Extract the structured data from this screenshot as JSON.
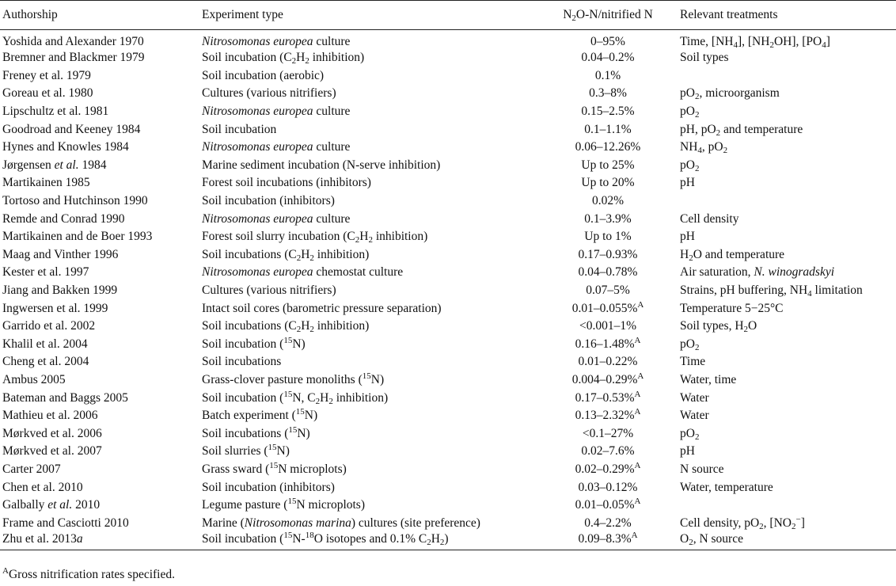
{
  "table": {
    "headers": [
      "Authorship",
      "Experiment type",
      "N2O-N/nitrified N",
      "Relevant treatments"
    ],
    "header_parts": [
      {
        "text": "Authorship"
      },
      {
        "text": "Experiment type"
      },
      {
        "text": "N2O-N/nitrified N",
        "parts": [
          {
            "t": "N"
          },
          {
            "t": "2",
            "sub": true
          },
          {
            "t": "O-N/nitrified N"
          }
        ]
      },
      {
        "text": "Relevant treatments"
      }
    ],
    "rows": [
      {
        "author": [
          {
            "t": "Yoshida and Alexander 1970"
          }
        ],
        "experiment": [
          {
            "t": "Nitrosomonas europea",
            "i": true
          },
          {
            "t": " culture"
          }
        ],
        "ratio": [
          {
            "t": "0–95%"
          }
        ],
        "treatments": [
          {
            "t": "Time, [NH"
          },
          {
            "t": "4",
            "sub": true
          },
          {
            "t": "], [NH"
          },
          {
            "t": "2",
            "sub": true
          },
          {
            "t": "OH], [PO"
          },
          {
            "t": "4",
            "sub": true
          },
          {
            "t": "]"
          }
        ]
      },
      {
        "author": [
          {
            "t": "Bremner and Blackmer 1979"
          }
        ],
        "experiment": [
          {
            "t": "Soil incubation (C"
          },
          {
            "t": "2",
            "sub": true
          },
          {
            "t": "H"
          },
          {
            "t": "2",
            "sub": true
          },
          {
            "t": " inhibition)"
          }
        ],
        "ratio": [
          {
            "t": "0.04–0.2%"
          }
        ],
        "treatments": [
          {
            "t": "Soil types"
          }
        ]
      },
      {
        "author": [
          {
            "t": "Freney et al. 1979"
          }
        ],
        "experiment": [
          {
            "t": "Soil incubation (aerobic)"
          }
        ],
        "ratio": [
          {
            "t": "0.1%"
          }
        ],
        "treatments": []
      },
      {
        "author": [
          {
            "t": "Goreau et al. 1980"
          }
        ],
        "experiment": [
          {
            "t": "Cultures (various nitrifiers)"
          }
        ],
        "ratio": [
          {
            "t": "0.3–8%"
          }
        ],
        "treatments": [
          {
            "t": "pO"
          },
          {
            "t": "2",
            "sub": true
          },
          {
            "t": ", microorganism"
          }
        ]
      },
      {
        "author": [
          {
            "t": "Lipschultz et al. 1981"
          }
        ],
        "experiment": [
          {
            "t": "Nitrosomonas europea",
            "i": true
          },
          {
            "t": " culture"
          }
        ],
        "ratio": [
          {
            "t": "0.15–2.5%"
          }
        ],
        "treatments": [
          {
            "t": "pO"
          },
          {
            "t": "2",
            "sub": true
          }
        ]
      },
      {
        "author": [
          {
            "t": "Goodroad and Keeney 1984"
          }
        ],
        "experiment": [
          {
            "t": "Soil incubation"
          }
        ],
        "ratio": [
          {
            "t": "0.1–1.1%"
          }
        ],
        "treatments": [
          {
            "t": "pH, pO"
          },
          {
            "t": "2",
            "sub": true
          },
          {
            "t": " and temperature"
          }
        ]
      },
      {
        "author": [
          {
            "t": "Hynes and Knowles 1984"
          }
        ],
        "experiment": [
          {
            "t": "Nitrosomonas europea",
            "i": true
          },
          {
            "t": " culture"
          }
        ],
        "ratio": [
          {
            "t": "0.06–12.26%"
          }
        ],
        "treatments": [
          {
            "t": "NH"
          },
          {
            "t": "4",
            "sub": true
          },
          {
            "t": ", pO"
          },
          {
            "t": "2",
            "sub": true
          }
        ]
      },
      {
        "author": [
          {
            "t": "Jørgensen "
          },
          {
            "t": "et al.",
            "i": true
          },
          {
            "t": " 1984"
          }
        ],
        "experiment": [
          {
            "t": "Marine sediment incubation (N-serve inhibition)"
          }
        ],
        "ratio": [
          {
            "t": "Up to 25%"
          }
        ],
        "treatments": [
          {
            "t": "pO"
          },
          {
            "t": "2",
            "sub": true
          }
        ]
      },
      {
        "author": [
          {
            "t": "Martikainen 1985"
          }
        ],
        "experiment": [
          {
            "t": "Forest soil incubations (inhibitors)"
          }
        ],
        "ratio": [
          {
            "t": "Up to 20%"
          }
        ],
        "treatments": [
          {
            "t": "pH"
          }
        ]
      },
      {
        "author": [
          {
            "t": "Tortoso and Hutchinson 1990"
          }
        ],
        "experiment": [
          {
            "t": "Soil incubation (inhibitors)"
          }
        ],
        "ratio": [
          {
            "t": "0.02%"
          }
        ],
        "treatments": []
      },
      {
        "author": [
          {
            "t": "Remde and Conrad 1990"
          }
        ],
        "experiment": [
          {
            "t": "Nitrosomonas europea",
            "i": true
          },
          {
            "t": " culture"
          }
        ],
        "ratio": [
          {
            "t": "0.1–3.9%"
          }
        ],
        "treatments": [
          {
            "t": "Cell density"
          }
        ]
      },
      {
        "author": [
          {
            "t": "Martikainen and de Boer 1993"
          }
        ],
        "experiment": [
          {
            "t": "Forest soil slurry incubation (C"
          },
          {
            "t": "2",
            "sub": true
          },
          {
            "t": "H"
          },
          {
            "t": "2",
            "sub": true
          },
          {
            "t": " inhibition)"
          }
        ],
        "ratio": [
          {
            "t": "Up to 1%"
          }
        ],
        "treatments": [
          {
            "t": "pH"
          }
        ]
      },
      {
        "author": [
          {
            "t": "Maag and Vinther 1996"
          }
        ],
        "experiment": [
          {
            "t": "Soil incubations (C"
          },
          {
            "t": "2",
            "sub": true
          },
          {
            "t": "H"
          },
          {
            "t": "2",
            "sub": true
          },
          {
            "t": " inhibition)"
          }
        ],
        "ratio": [
          {
            "t": "0.17–0.93%"
          }
        ],
        "treatments": [
          {
            "t": "H"
          },
          {
            "t": "2",
            "sub": true
          },
          {
            "t": "O and temperature"
          }
        ]
      },
      {
        "author": [
          {
            "t": "Kester et al. 1997"
          }
        ],
        "experiment": [
          {
            "t": "Nitrosomonas europea",
            "i": true
          },
          {
            "t": " chemostat culture"
          }
        ],
        "ratio": [
          {
            "t": "0.04–0.78%"
          }
        ],
        "treatments": [
          {
            "t": "Air saturation, "
          },
          {
            "t": "N. winogradskyi",
            "i": true
          }
        ]
      },
      {
        "author": [
          {
            "t": "Jiang and Bakken 1999"
          }
        ],
        "experiment": [
          {
            "t": "Cultures (various nitrifiers)"
          }
        ],
        "ratio": [
          {
            "t": "0.07–5%"
          }
        ],
        "treatments": [
          {
            "t": "Strains, pH buffering, NH"
          },
          {
            "t": "4",
            "sub": true
          },
          {
            "t": " limitation"
          }
        ]
      },
      {
        "author": [
          {
            "t": "Ingwersen et al. 1999"
          }
        ],
        "experiment": [
          {
            "t": "Intact soil cores (barometric pressure separation)"
          }
        ],
        "ratio": [
          {
            "t": "0.01–0.055%"
          },
          {
            "t": "A",
            "sup": true
          }
        ],
        "treatments": [
          {
            "t": "Temperature 5−25°C"
          }
        ]
      },
      {
        "author": [
          {
            "t": "Garrido et al. 2002"
          }
        ],
        "experiment": [
          {
            "t": "Soil incubations (C"
          },
          {
            "t": "2",
            "sub": true
          },
          {
            "t": "H"
          },
          {
            "t": "2",
            "sub": true
          },
          {
            "t": " inhibition)"
          }
        ],
        "ratio": [
          {
            "t": "<0.001–1%"
          }
        ],
        "treatments": [
          {
            "t": "Soil types, H"
          },
          {
            "t": "2",
            "sub": true
          },
          {
            "t": "O"
          }
        ]
      },
      {
        "author": [
          {
            "t": "Khalil et al. 2004"
          }
        ],
        "experiment": [
          {
            "t": "Soil incubation ("
          },
          {
            "t": "15",
            "sup": true
          },
          {
            "t": "N)"
          }
        ],
        "ratio": [
          {
            "t": "0.16–1.48%"
          },
          {
            "t": "A",
            "sup": true
          }
        ],
        "treatments": [
          {
            "t": "pO"
          },
          {
            "t": "2",
            "sub": true
          }
        ]
      },
      {
        "author": [
          {
            "t": "Cheng et al. 2004"
          }
        ],
        "experiment": [
          {
            "t": "Soil incubations"
          }
        ],
        "ratio": [
          {
            "t": "0.01–0.22%"
          }
        ],
        "treatments": [
          {
            "t": "Time"
          }
        ]
      },
      {
        "author": [
          {
            "t": "Ambus 2005"
          }
        ],
        "experiment": [
          {
            "t": "Grass-clover pasture monoliths ("
          },
          {
            "t": "15",
            "sup": true
          },
          {
            "t": "N)"
          }
        ],
        "ratio": [
          {
            "t": "0.004–0.29%"
          },
          {
            "t": "A",
            "sup": true
          }
        ],
        "treatments": [
          {
            "t": "Water, time"
          }
        ]
      },
      {
        "author": [
          {
            "t": "Bateman and Baggs 2005"
          }
        ],
        "experiment": [
          {
            "t": "Soil incubation ("
          },
          {
            "t": "15",
            "sup": true
          },
          {
            "t": "N, C"
          },
          {
            "t": "2",
            "sub": true
          },
          {
            "t": "H"
          },
          {
            "t": "2",
            "sub": true
          },
          {
            "t": " inhibition)"
          }
        ],
        "ratio": [
          {
            "t": "0.17–0.53%"
          },
          {
            "t": "A",
            "sup": true
          }
        ],
        "treatments": [
          {
            "t": "Water"
          }
        ]
      },
      {
        "author": [
          {
            "t": "Mathieu et al. 2006"
          }
        ],
        "experiment": [
          {
            "t": "Batch experiment ("
          },
          {
            "t": "15",
            "sup": true
          },
          {
            "t": "N)"
          }
        ],
        "ratio": [
          {
            "t": "0.13–2.32%"
          },
          {
            "t": "A",
            "sup": true
          }
        ],
        "treatments": [
          {
            "t": "Water"
          }
        ]
      },
      {
        "author": [
          {
            "t": "Mørkved et al. 2006"
          }
        ],
        "experiment": [
          {
            "t": "Soil incubations ("
          },
          {
            "t": "15",
            "sup": true
          },
          {
            "t": "N)"
          }
        ],
        "ratio": [
          {
            "t": "<0.1–27%"
          }
        ],
        "treatments": [
          {
            "t": "pO"
          },
          {
            "t": "2",
            "sub": true
          }
        ]
      },
      {
        "author": [
          {
            "t": "Mørkved et al. 2007"
          }
        ],
        "experiment": [
          {
            "t": "Soil slurries ("
          },
          {
            "t": "15",
            "sup": true
          },
          {
            "t": "N)"
          }
        ],
        "ratio": [
          {
            "t": "0.02–7.6%"
          }
        ],
        "treatments": [
          {
            "t": "pH"
          }
        ]
      },
      {
        "author": [
          {
            "t": "Carter 2007"
          }
        ],
        "experiment": [
          {
            "t": "Grass sward ("
          },
          {
            "t": "15",
            "sup": true
          },
          {
            "t": "N microplots)"
          }
        ],
        "ratio": [
          {
            "t": "0.02–0.29%"
          },
          {
            "t": "A",
            "sup": true
          }
        ],
        "treatments": [
          {
            "t": "N source"
          }
        ]
      },
      {
        "author": [
          {
            "t": "Chen et al. 2010"
          }
        ],
        "experiment": [
          {
            "t": "Soil incubation (inhibitors)"
          }
        ],
        "ratio": [
          {
            "t": "0.03–0.12%"
          }
        ],
        "treatments": [
          {
            "t": "Water, temperature"
          }
        ]
      },
      {
        "author": [
          {
            "t": "Galbally "
          },
          {
            "t": "et al.",
            "i": true
          },
          {
            "t": " 2010"
          }
        ],
        "experiment": [
          {
            "t": "Legume pasture ("
          },
          {
            "t": "15",
            "sup": true
          },
          {
            "t": "N microplots)"
          }
        ],
        "ratio": [
          {
            "t": "0.01–0.05%"
          },
          {
            "t": "A",
            "sup": true
          }
        ],
        "treatments": []
      },
      {
        "author": [
          {
            "t": "Frame and Casciotti 2010"
          }
        ],
        "experiment": [
          {
            "t": "Marine ("
          },
          {
            "t": "Nitrosomonas marina",
            "i": true
          },
          {
            "t": ") cultures (site preference)"
          }
        ],
        "ratio": [
          {
            "t": "0.4–2.2%"
          }
        ],
        "treatments": [
          {
            "t": "Cell density, pO"
          },
          {
            "t": "2",
            "sub": true
          },
          {
            "t": ", [NO"
          },
          {
            "t": "2",
            "sub": true
          },
          {
            "t": "−",
            "sup": true
          },
          {
            "t": "]"
          }
        ]
      },
      {
        "author": [
          {
            "t": "Zhu et al. 2013"
          },
          {
            "t": "a",
            "i": true
          }
        ],
        "experiment": [
          {
            "t": "Soil incubation ("
          },
          {
            "t": "15",
            "sup": true
          },
          {
            "t": "N-"
          },
          {
            "t": "18",
            "sup": true
          },
          {
            "t": "O isotopes and 0.1% C"
          },
          {
            "t": "2",
            "sub": true
          },
          {
            "t": "H"
          },
          {
            "t": "2",
            "sub": true
          },
          {
            "t": ")"
          }
        ],
        "ratio": [
          {
            "t": "0.09–8.3%"
          },
          {
            "t": "A",
            "sup": true
          }
        ],
        "treatments": [
          {
            "t": "O"
          },
          {
            "t": "2",
            "sub": true
          },
          {
            "t": ", N source"
          }
        ]
      }
    ]
  },
  "footnote": [
    {
      "t": "A",
      "sup": true
    },
    {
      "t": "Gross nitrification rates specified."
    }
  ]
}
